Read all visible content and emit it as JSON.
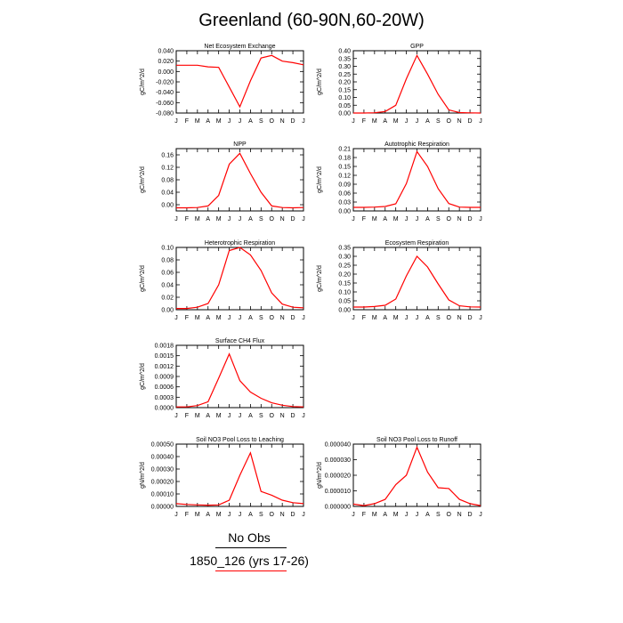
{
  "title": "Greenland (60-90N,60-20W)",
  "months": [
    "J",
    "F",
    "M",
    "A",
    "M",
    "J",
    "J",
    "A",
    "S",
    "O",
    "N",
    "D",
    "J"
  ],
  "legend": {
    "obs_label": "No Obs",
    "model_label": "1850_126 (yrs 17-26)",
    "obs_color": "#000000",
    "model_color": "#ff0000"
  },
  "chart_data": [
    {
      "type": "line",
      "title": "Net Ecosystem Exchange",
      "ylabel": "gC/m^2/d",
      "ylim": [
        -0.08,
        0.04
      ],
      "yticks": [
        "-0.080",
        "-0.060",
        "-0.040",
        "-0.020",
        "0.000",
        "0.020",
        "0.040"
      ],
      "x": [
        1,
        2,
        3,
        4,
        5,
        6,
        7,
        8,
        9,
        10,
        11,
        12,
        13
      ],
      "series": [
        {
          "values": [
            0.012,
            0.012,
            0.012,
            0.009,
            0.008,
            -0.03,
            -0.068,
            -0.018,
            0.026,
            0.031,
            0.02,
            0.017,
            0.013
          ]
        }
      ]
    },
    {
      "type": "line",
      "title": "GPP",
      "ylabel": "gC/m^2/d",
      "ylim": [
        0,
        0.4
      ],
      "yticks": [
        "0.00",
        "0.05",
        "0.10",
        "0.15",
        "0.20",
        "0.25",
        "0.30",
        "0.35",
        "0.40"
      ],
      "x": [
        1,
        2,
        3,
        4,
        5,
        6,
        7,
        8,
        9,
        10,
        11,
        12,
        13
      ],
      "series": [
        {
          "values": [
            0.0,
            0.0,
            0.002,
            0.01,
            0.05,
            0.22,
            0.37,
            0.25,
            0.12,
            0.02,
            0.003,
            0.001,
            0.0
          ]
        }
      ]
    },
    {
      "type": "line",
      "title": "NPP",
      "ylabel": "gC/m^2/d",
      "ylim": [
        -0.02,
        0.18
      ],
      "yticks": [
        "0.00",
        "0.04",
        "0.08",
        "0.12",
        "0.16"
      ],
      "ytick_values": [
        0,
        0.04,
        0.08,
        0.12,
        0.16
      ],
      "x": [
        1,
        2,
        3,
        4,
        5,
        6,
        7,
        8,
        9,
        10,
        11,
        12,
        13
      ],
      "series": [
        {
          "values": [
            -0.01,
            -0.01,
            -0.009,
            -0.004,
            0.03,
            0.13,
            0.165,
            0.1,
            0.04,
            -0.004,
            -0.009,
            -0.01,
            -0.009
          ]
        }
      ]
    },
    {
      "type": "line",
      "title": "Autotrophic Respiration",
      "ylabel": "gC/m^2/d",
      "ylim": [
        0,
        0.21
      ],
      "yticks": [
        "0.00",
        "0.03",
        "0.06",
        "0.09",
        "0.12",
        "0.15",
        "0.18",
        "0.21"
      ],
      "x": [
        1,
        2,
        3,
        4,
        5,
        6,
        7,
        8,
        9,
        10,
        11,
        12,
        13
      ],
      "series": [
        {
          "values": [
            0.012,
            0.012,
            0.013,
            0.015,
            0.024,
            0.092,
            0.2,
            0.15,
            0.075,
            0.025,
            0.013,
            0.012,
            0.012
          ]
        }
      ]
    },
    {
      "type": "line",
      "title": "Heterotrophic Respiration",
      "ylabel": "gC/m^2/d",
      "ylim": [
        0,
        0.1
      ],
      "yticks": [
        "0.00",
        "0.02",
        "0.04",
        "0.06",
        "0.08",
        "0.10"
      ],
      "x": [
        1,
        2,
        3,
        4,
        5,
        6,
        7,
        8,
        9,
        10,
        11,
        12,
        13
      ],
      "series": [
        {
          "values": [
            0.002,
            0.002,
            0.004,
            0.01,
            0.04,
            0.095,
            0.1,
            0.088,
            0.063,
            0.027,
            0.009,
            0.004,
            0.003
          ]
        }
      ]
    },
    {
      "type": "line",
      "title": "Ecosystem Respiration",
      "ylabel": "gC/m^2/d",
      "ylim": [
        0,
        0.35
      ],
      "yticks": [
        "0.00",
        "0.05",
        "0.10",
        "0.15",
        "0.20",
        "0.25",
        "0.30",
        "0.35"
      ],
      "x": [
        1,
        2,
        3,
        4,
        5,
        6,
        7,
        8,
        9,
        10,
        11,
        12,
        13
      ],
      "series": [
        {
          "values": [
            0.015,
            0.015,
            0.018,
            0.025,
            0.06,
            0.19,
            0.3,
            0.24,
            0.145,
            0.055,
            0.022,
            0.016,
            0.015
          ]
        }
      ]
    },
    {
      "type": "line",
      "title": "Surface CH4 Flux",
      "ylabel": "gC/m^2/d",
      "ylim": [
        0,
        0.0018
      ],
      "yticks": [
        "0.0000",
        "0.0003",
        "0.0006",
        "0.0009",
        "0.0012",
        "0.0015",
        "0.0018"
      ],
      "x": [
        1,
        2,
        3,
        4,
        5,
        6,
        7,
        8,
        9,
        10,
        11,
        12,
        13
      ],
      "series": [
        {
          "values": [
            2e-05,
            2e-05,
            6e-05,
            0.00017,
            0.00085,
            0.00155,
            0.00078,
            0.00045,
            0.00027,
            0.00014,
            7e-05,
            3e-05,
            2e-05
          ]
        }
      ]
    },
    {
      "type": "line",
      "title": "Soil NO3 Pool Loss to Leaching",
      "ylabel": "gN/m^2/d",
      "ylim": [
        0,
        0.0005
      ],
      "yticks": [
        "0.00000",
        "0.00010",
        "0.00020",
        "0.00030",
        "0.00040",
        "0.00050"
      ],
      "x": [
        1,
        2,
        3,
        4,
        5,
        6,
        7,
        8,
        9,
        10,
        11,
        12,
        13
      ],
      "series": [
        {
          "values": [
            2.2e-05,
            1.6e-05,
            1.2e-05,
            1e-05,
            1.2e-05,
            5e-05,
            0.00025,
            0.00043,
            0.00012,
            9e-05,
            5e-05,
            3e-05,
            2.2e-05
          ]
        }
      ]
    },
    {
      "type": "line",
      "title": "Soil NO3 Pool Loss to Runoff",
      "ylabel": "gN/m^2/d",
      "ylim": [
        0,
        4e-05
      ],
      "yticks": [
        "0.000000",
        "0.000010",
        "0.000020",
        "0.000030",
        "0.000040"
      ],
      "x": [
        1,
        2,
        3,
        4,
        5,
        6,
        7,
        8,
        9,
        10,
        11,
        12,
        13
      ],
      "series": [
        {
          "values": [
            1.5e-06,
            5e-07,
            1.8e-06,
            4.5e-06,
            1.4e-05,
            2e-05,
            3.8e-05,
            2.2e-05,
            1.2e-05,
            1.15e-05,
            4.5e-06,
            1.8e-06,
            5e-07
          ]
        }
      ]
    }
  ]
}
